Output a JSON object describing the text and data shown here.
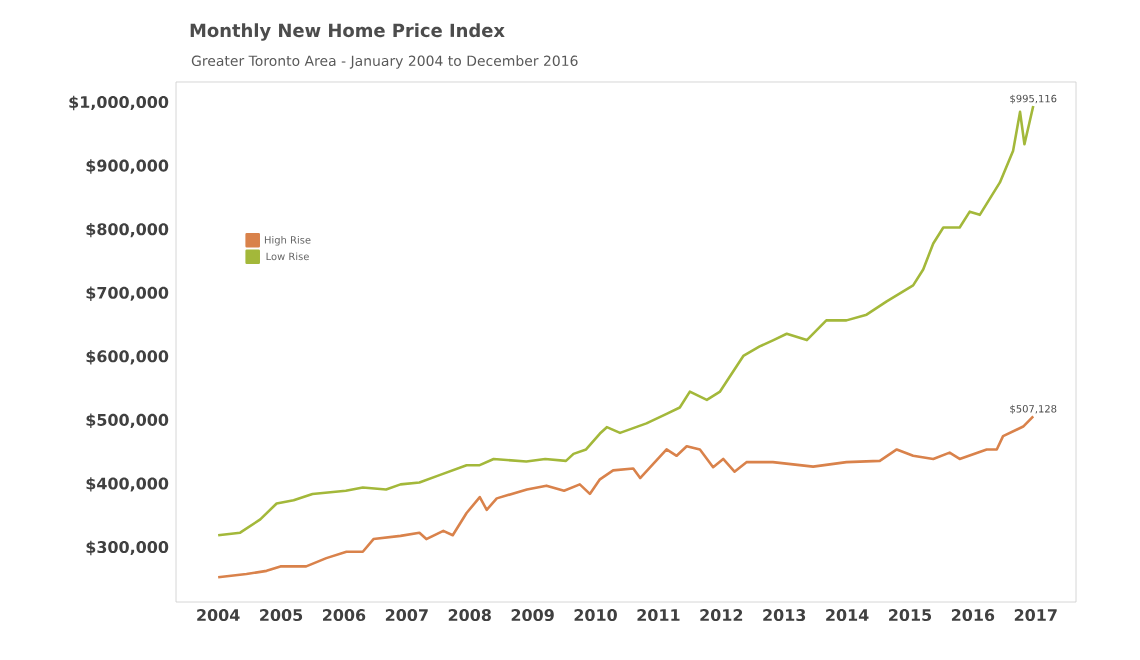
{
  "chart_data": {
    "type": "line",
    "title": "Monthly New Home Price Index",
    "subtitle": "Greater Toronto Area - January 2004 to December 2016",
    "xlim": [
      2003.33,
      2017.64
    ],
    "xticks": [
      2004,
      2005,
      2006,
      2007,
      2008,
      2009,
      2010,
      2011,
      2012,
      2013,
      2014,
      2015,
      2016,
      2017
    ],
    "ylim": [
      215000,
      1033000
    ],
    "yticks": [
      {
        "value": 300000,
        "label": "$300,000"
      },
      {
        "value": 400000,
        "label": "$400,000"
      },
      {
        "value": 500000,
        "label": "$500,000"
      },
      {
        "value": 600000,
        "label": "$600,000"
      },
      {
        "value": 700000,
        "label": "$700,000"
      },
      {
        "value": 800000,
        "label": "$800,000"
      },
      {
        "value": 900000,
        "label": "$900,000"
      },
      {
        "value": 1000000,
        "label": "$1,000,000"
      }
    ],
    "grid": false,
    "legend": "left",
    "marker": "none",
    "line_style": "solid",
    "series": [
      {
        "name": "High Rise",
        "color": "#d9824b",
        "x": [
          2004,
          2004.45,
          2004.77,
          2004.99,
          2005.4,
          2005.72,
          2006.04,
          2006.3,
          2006.47,
          2006.9,
          2007.2,
          2007.31,
          2007.58,
          2007.73,
          2007.95,
          2008.16,
          2008.27,
          2008.43,
          2008.91,
          2009.22,
          2009.5,
          2009.75,
          2009.91,
          2010.07,
          2010.28,
          2010.6,
          2010.71,
          2011.13,
          2011.29,
          2011.45,
          2011.66,
          2011.87,
          2012.03,
          2012.21,
          2012.4,
          2012.82,
          2013.46,
          2013.99,
          2014.52,
          2014.79,
          2015.05,
          2015.37,
          2015.63,
          2015.79,
          2016.22,
          2016.38,
          2016.48,
          2016.8,
          2016.96
        ],
        "values": [
          254000,
          259000,
          264000,
          271000,
          271000,
          284000,
          294000,
          294000,
          314000,
          319000,
          324000,
          314000,
          327000,
          320000,
          355000,
          380000,
          360000,
          378000,
          392000,
          398000,
          390000,
          400000,
          385000,
          408000,
          422000,
          425000,
          410000,
          455000,
          445000,
          460000,
          455000,
          427000,
          440000,
          420000,
          435000,
          435000,
          428000,
          435000,
          437000,
          455000,
          445000,
          440000,
          450000,
          440000,
          455000,
          455000,
          476000,
          491000,
          507128
        ]
      },
      {
        "name": "Low Rise",
        "color": "#a3b83a",
        "x": [
          2004,
          2004.35,
          2004.67,
          2004.93,
          2005.2,
          2005.5,
          2006.03,
          2006.3,
          2006.67,
          2006.9,
          2007.2,
          2007.53,
          2007.95,
          2008.15,
          2008.38,
          2008.9,
          2009.2,
          2009.53,
          2009.65,
          2009.85,
          2010.07,
          2010.18,
          2010.39,
          2010.81,
          2011.13,
          2011.34,
          2011.5,
          2011.77,
          2011.98,
          2012.35,
          2012.61,
          2012.83,
          2013.04,
          2013.36,
          2013.67,
          2013.99,
          2014.31,
          2014.63,
          2015.05,
          2015.21,
          2015.37,
          2015.53,
          2015.79,
          2015.95,
          2016.11,
          2016.43,
          2016.64,
          2016.75,
          2016.82,
          2016.96
        ],
        "values": [
          320000,
          324000,
          345000,
          370000,
          375000,
          385000,
          390000,
          395000,
          392000,
          400000,
          403000,
          415000,
          430000,
          430000,
          440000,
          436000,
          440000,
          437000,
          448000,
          455000,
          480000,
          490000,
          481000,
          496000,
          511000,
          521000,
          546000,
          533000,
          546000,
          602000,
          617000,
          627000,
          637000,
          627000,
          658000,
          658000,
          667000,
          688000,
          713000,
          738000,
          779000,
          804000,
          804000,
          829000,
          824000,
          875000,
          925000,
          986000,
          935000,
          995116
        ]
      }
    ],
    "annotations": [
      {
        "text": "$507,128",
        "x": 2016.96,
        "y": 507128
      },
      {
        "text": "$995,116",
        "x": 2016.96,
        "y": 995116
      }
    ]
  }
}
